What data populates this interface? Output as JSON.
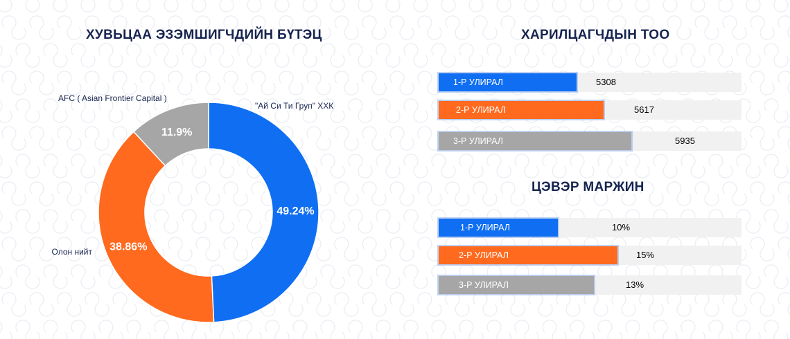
{
  "colors": {
    "blue": "#0f6ef2",
    "orange": "#ff6a1f",
    "gray": "#a6a6a6",
    "title": "#16244f"
  },
  "chart_data": [
    {
      "type": "pie",
      "title": "ХУВЬЦАА ЭЗЭМШИГЧДИЙН БҮТЭЦ",
      "slices": [
        {
          "name": "\"Ай Си Ти Груп\" ХХК",
          "value": 49.24,
          "label": "49.24%",
          "color": "#0f6ef2"
        },
        {
          "name": "Олон нийт",
          "value": 38.86,
          "label": "38.86%",
          "color": "#ff6a1f"
        },
        {
          "name": "AFC ( Asian Frontier Capital )",
          "value": 11.9,
          "label": "11.9%",
          "color": "#a6a6a6"
        }
      ]
    },
    {
      "type": "bar",
      "orientation": "horizontal",
      "title": "ХАРИЛЦАГЧДЫН ТОО",
      "categories": [
        "1-Р УЛИРАЛ",
        "2-Р УЛИРАЛ",
        "3-Р УЛИРАЛ"
      ],
      "values": [
        5308,
        5617,
        5935
      ],
      "value_labels": [
        "5308",
        "5617",
        "5935"
      ],
      "colors": [
        "#0f6ef2",
        "#ff6a1f",
        "#a6a6a6"
      ]
    },
    {
      "type": "bar",
      "orientation": "horizontal",
      "title": "ЦЭВЭР МАРЖИН",
      "categories": [
        "1-Р УЛИРАЛ",
        "2-Р УЛИРАЛ",
        "3-Р УЛИРАЛ"
      ],
      "values": [
        10,
        15,
        13
      ],
      "value_labels": [
        "10%",
        "15%",
        "13%"
      ],
      "colors": [
        "#0f6ef2",
        "#ff6a1f",
        "#a6a6a6"
      ]
    }
  ]
}
